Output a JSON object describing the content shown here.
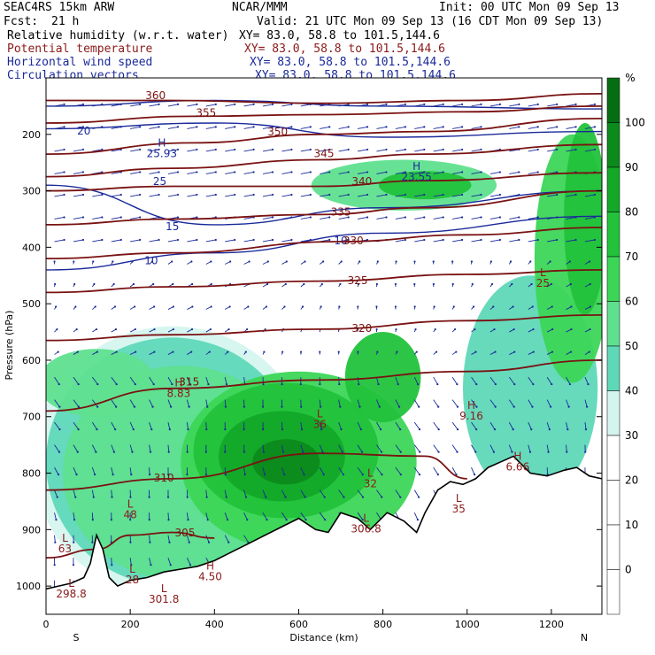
{
  "header": {
    "model": "SEAC4RS 15km ARW",
    "org": "NCAR/MMM",
    "init": "Init: 00 UTC Mon 09 Sep 13",
    "fcst_label": "Fcst:",
    "fcst_value": "21 h",
    "valid": "Valid: 21 UTC Mon 09 Sep 13 (16 CDT Mon 09 Sep 13)"
  },
  "legend": [
    {
      "name": "Relative humidity (w.r.t. water)",
      "xy": "XY=  83.0, 58.8 to 101.5,144.6",
      "color": "#000000"
    },
    {
      "name": "Potential temperature",
      "xy": "XY=  83.0, 58.8 to 101.5,144.6",
      "color": "#8b1a1a"
    },
    {
      "name": "Horizontal wind speed",
      "xy": "XY=  83.0, 58.8 to 101.5,144.6",
      "color": "#1a2a9a"
    },
    {
      "name": "Circulation vectors",
      "xy": "XY=  83.0, 58.8 to 101.5,144.6",
      "color": "#1a2a9a"
    }
  ],
  "chart_data": {
    "type": "heatmap",
    "title": "",
    "xlabel": "Distance (km)",
    "ylabel": "Pressure (hPa)",
    "xlim": [
      0,
      1320
    ],
    "ylim": [
      1050,
      100
    ],
    "x_ticks": [
      0,
      200,
      400,
      600,
      800,
      1000,
      1200
    ],
    "y_ticks": [
      200,
      300,
      400,
      500,
      600,
      700,
      800,
      900,
      1000
    ],
    "end_labels": {
      "left": "S",
      "right": "N"
    },
    "colorbar": {
      "unit": "%",
      "ticks": [
        0,
        10,
        20,
        30,
        40,
        50,
        60,
        70,
        80,
        90,
        100
      ],
      "bins": [
        {
          "lo": -10,
          "hi": 0,
          "color": "#ffffff"
        },
        {
          "lo": 0,
          "hi": 10,
          "color": "#ffffff"
        },
        {
          "lo": 10,
          "hi": 20,
          "color": "#ffffff"
        },
        {
          "lo": 20,
          "hi": 30,
          "color": "#ffffff"
        },
        {
          "lo": 30,
          "hi": 40,
          "color": "#d4f5ee"
        },
        {
          "lo": 40,
          "hi": 50,
          "color": "#5fd8b8"
        },
        {
          "lo": 50,
          "hi": 60,
          "color": "#5fe08f"
        },
        {
          "lo": 60,
          "hi": 70,
          "color": "#3cd657"
        },
        {
          "lo": 70,
          "hi": 80,
          "color": "#22c23b"
        },
        {
          "lo": 80,
          "hi": 90,
          "color": "#13a828"
        },
        {
          "lo": 90,
          "hi": 100,
          "color": "#0c8a1c"
        },
        {
          "lo": 100,
          "hi": 110,
          "color": "#066e12"
        }
      ]
    },
    "terrain_surface": [
      [
        0,
        1005
      ],
      [
        30,
        1000
      ],
      [
        60,
        995
      ],
      [
        90,
        985
      ],
      [
        105,
        960
      ],
      [
        120,
        910
      ],
      [
        135,
        935
      ],
      [
        150,
        985
      ],
      [
        170,
        1000
      ],
      [
        200,
        990
      ],
      [
        240,
        985
      ],
      [
        280,
        975
      ],
      [
        320,
        970
      ],
      [
        360,
        965
      ],
      [
        400,
        955
      ],
      [
        440,
        940
      ],
      [
        480,
        925
      ],
      [
        520,
        910
      ],
      [
        560,
        895
      ],
      [
        600,
        880
      ],
      [
        640,
        900
      ],
      [
        670,
        905
      ],
      [
        700,
        870
      ],
      [
        740,
        880
      ],
      [
        770,
        900
      ],
      [
        810,
        870
      ],
      [
        850,
        885
      ],
      [
        880,
        905
      ],
      [
        900,
        870
      ],
      [
        930,
        830
      ],
      [
        960,
        815
      ],
      [
        990,
        820
      ],
      [
        1020,
        810
      ],
      [
        1050,
        790
      ],
      [
        1080,
        780
      ],
      [
        1110,
        770
      ],
      [
        1150,
        800
      ],
      [
        1190,
        805
      ],
      [
        1230,
        795
      ],
      [
        1260,
        790
      ],
      [
        1290,
        805
      ],
      [
        1320,
        810
      ]
    ],
    "theta_contours": [
      {
        "label": "360",
        "points": [
          [
            0,
            140
          ],
          [
            300,
            140
          ],
          [
            650,
            145
          ],
          [
            1000,
            140
          ],
          [
            1320,
            128
          ]
        ]
      },
      {
        "label": "355",
        "points": [
          [
            0,
            180
          ],
          [
            350,
            168
          ],
          [
            650,
            165
          ],
          [
            1000,
            160
          ],
          [
            1320,
            150
          ]
        ]
      },
      {
        "label": "350",
        "points": [
          [
            0,
            235
          ],
          [
            350,
            215
          ],
          [
            650,
            200
          ],
          [
            900,
            195
          ],
          [
            1320,
            172
          ]
        ]
      },
      {
        "label": "345",
        "points": [
          [
            0,
            275
          ],
          [
            300,
            260
          ],
          [
            650,
            245
          ],
          [
            900,
            235
          ],
          [
            1320,
            218
          ]
        ]
      },
      {
        "label": "340",
        "points": [
          [
            0,
            300
          ],
          [
            300,
            292
          ],
          [
            650,
            292
          ],
          [
            900,
            282
          ],
          [
            1320,
            268
          ]
        ]
      },
      {
        "label": "335",
        "points": [
          [
            0,
            360
          ],
          [
            300,
            350
          ],
          [
            650,
            342
          ],
          [
            900,
            330
          ],
          [
            1320,
            300
          ]
        ]
      },
      {
        "label": "330",
        "points": [
          [
            0,
            420
          ],
          [
            300,
            410
          ],
          [
            700,
            390
          ],
          [
            1000,
            378
          ],
          [
            1320,
            365
          ]
        ]
      },
      {
        "label": "325",
        "points": [
          [
            0,
            480
          ],
          [
            300,
            470
          ],
          [
            650,
            460
          ],
          [
            1000,
            448
          ],
          [
            1320,
            440
          ]
        ]
      },
      {
        "label": "320",
        "points": [
          [
            0,
            565
          ],
          [
            300,
            555
          ],
          [
            650,
            545
          ],
          [
            1000,
            530
          ],
          [
            1320,
            520
          ]
        ]
      },
      {
        "label": "315",
        "points": [
          [
            0,
            690
          ],
          [
            300,
            650
          ],
          [
            650,
            635
          ],
          [
            1000,
            620
          ],
          [
            1320,
            600
          ]
        ]
      },
      {
        "label": "310",
        "points": [
          [
            0,
            830
          ],
          [
            300,
            810
          ],
          [
            650,
            765
          ],
          [
            900,
            770
          ],
          [
            1000,
            810
          ]
        ]
      },
      {
        "label": "305",
        "points": [
          [
            0,
            950
          ],
          [
            120,
            935
          ],
          [
            200,
            910
          ],
          [
            300,
            905
          ],
          [
            400,
            915
          ]
        ]
      }
    ],
    "theta_labels": [
      {
        "text": "360",
        "x": 260,
        "y": 138
      },
      {
        "text": "355",
        "x": 380,
        "y": 168
      },
      {
        "text": "350",
        "x": 550,
        "y": 202
      },
      {
        "text": "345",
        "x": 660,
        "y": 240
      },
      {
        "text": "340",
        "x": 750,
        "y": 290
      },
      {
        "text": "335",
        "x": 700,
        "y": 344
      },
      {
        "text": "330",
        "x": 730,
        "y": 395
      },
      {
        "text": "325",
        "x": 740,
        "y": 465
      },
      {
        "text": "320",
        "x": 750,
        "y": 550
      },
      {
        "text": "315",
        "x": 340,
        "y": 645
      },
      {
        "text": "310",
        "x": 280,
        "y": 815
      },
      {
        "text": "305",
        "x": 330,
        "y": 912
      }
    ],
    "wind_contours": [
      {
        "label": "25",
        "points": [
          [
            0,
            150
          ],
          [
            400,
            140
          ],
          [
            800,
            150
          ],
          [
            1320,
            155
          ]
        ]
      },
      {
        "label": "20",
        "points": [
          [
            0,
            190
          ],
          [
            400,
            180
          ],
          [
            800,
            205
          ],
          [
            1320,
            195
          ]
        ]
      },
      {
        "label": "15",
        "points": [
          [
            0,
            290
          ],
          [
            400,
            360
          ],
          [
            800,
            330
          ],
          [
            1320,
            300
          ]
        ]
      },
      {
        "label": "10",
        "points": [
          [
            0,
            440
          ],
          [
            400,
            410
          ],
          [
            800,
            375
          ],
          [
            1320,
            345
          ]
        ]
      }
    ],
    "wind_labels": [
      {
        "text": "15",
        "x": 300,
        "y": 370
      },
      {
        "text": "10",
        "x": 250,
        "y": 430
      },
      {
        "text": "25",
        "x": 270,
        "y": 290
      },
      {
        "text": "20",
        "x": 90,
        "y": 200
      },
      {
        "text": "10",
        "x": 700,
        "y": 395
      }
    ],
    "extrema": [
      {
        "kind": "H",
        "value": "25.93",
        "x": 275,
        "y": 240,
        "color": "#1a2a9a"
      },
      {
        "kind": "H",
        "value": "23.55",
        "x": 880,
        "y": 282,
        "color": "#1a2a9a"
      },
      {
        "kind": "H",
        "value": "8.83",
        "x": 315,
        "y": 665,
        "color": "#8b1a1a"
      },
      {
        "kind": "H",
        "value": "9.16",
        "x": 1010,
        "y": 705,
        "color": "#8b1a1a"
      },
      {
        "kind": "H",
        "value": "6.66",
        "x": 1120,
        "y": 795,
        "color": "#8b1a1a"
      },
      {
        "kind": "H",
        "value": "4.50",
        "x": 390,
        "y": 990,
        "color": "#8b1a1a"
      },
      {
        "kind": "L",
        "value": "36",
        "x": 650,
        "y": 720,
        "color": "#8b1a1a"
      },
      {
        "kind": "L",
        "value": "32",
        "x": 770,
        "y": 825,
        "color": "#8b1a1a"
      },
      {
        "kind": "L",
        "value": "35",
        "x": 980,
        "y": 870,
        "color": "#8b1a1a"
      },
      {
        "kind": "L",
        "value": "48",
        "x": 200,
        "y": 880,
        "color": "#8b1a1a"
      },
      {
        "kind": "L",
        "value": "63",
        "x": 45,
        "y": 940,
        "color": "#8b1a1a"
      },
      {
        "kind": "L",
        "value": "28",
        "x": 205,
        "y": 995,
        "color": "#8b1a1a"
      },
      {
        "kind": "L",
        "value": "306.8",
        "x": 760,
        "y": 905,
        "color": "#8b1a1a"
      },
      {
        "kind": "L",
        "value": "301.8",
        "x": 280,
        "y": 1030,
        "color": "#8b1a1a"
      },
      {
        "kind": "L",
        "value": "298.8",
        "x": 60,
        "y": 1020,
        "color": "#8b1a1a"
      },
      {
        "kind": "L",
        "value": "25",
        "x": 1180,
        "y": 470,
        "color": "#8b1a1a"
      }
    ],
    "rh_patches": [
      {
        "bin": 4,
        "cx": 300,
        "cy": 780,
        "rx": 330,
        "ry": 240
      },
      {
        "bin": 5,
        "cx": 300,
        "cy": 780,
        "rx": 300,
        "ry": 220
      },
      {
        "bin": 6,
        "cx": 320,
        "cy": 800,
        "rx": 280,
        "ry": 190
      },
      {
        "bin": 7,
        "cx": 600,
        "cy": 780,
        "rx": 280,
        "ry": 160
      },
      {
        "bin": 8,
        "cx": 570,
        "cy": 760,
        "rx": 220,
        "ry": 120
      },
      {
        "bin": 9,
        "cx": 560,
        "cy": 770,
        "rx": 150,
        "ry": 80
      },
      {
        "bin": 10,
        "cx": 570,
        "cy": 780,
        "rx": 80,
        "ry": 40
      },
      {
        "bin": 5,
        "cx": 1150,
        "cy": 650,
        "rx": 160,
        "ry": 200
      },
      {
        "bin": 7,
        "cx": 1250,
        "cy": 420,
        "rx": 90,
        "ry": 220
      },
      {
        "bin": 8,
        "cx": 1280,
        "cy": 350,
        "rx": 50,
        "ry": 170
      },
      {
        "bin": 6,
        "cx": 850,
        "cy": 290,
        "rx": 220,
        "ry": 45
      },
      {
        "bin": 8,
        "cx": 900,
        "cy": 290,
        "rx": 110,
        "ry": 25
      },
      {
        "bin": 6,
        "cx": 120,
        "cy": 640,
        "rx": 140,
        "ry": 60
      },
      {
        "bin": 8,
        "cx": 800,
        "cy": 630,
        "rx": 90,
        "ry": 80
      }
    ]
  }
}
